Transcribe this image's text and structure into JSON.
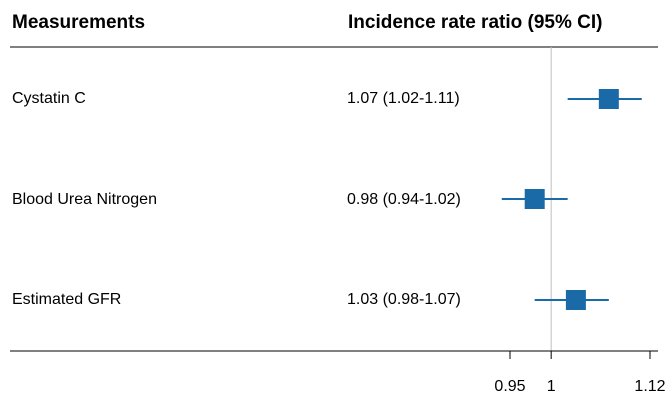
{
  "header": {
    "left": "Measurements",
    "right": "Incidence rate ratio (95% CI)"
  },
  "chart_data": {
    "type": "forest",
    "xlim": [
      0.93,
      1.12
    ],
    "reference_line": 1,
    "ticks": [
      {
        "value": 0.95,
        "label": "0.95"
      },
      {
        "value": 1,
        "label": "1"
      },
      {
        "value": 1.12,
        "label": "1.12"
      }
    ],
    "rows": [
      {
        "label": "Cystatin C",
        "ci_text": "1.07 (1.02-1.11)",
        "estimate": 1.07,
        "lower": 1.02,
        "upper": 1.11
      },
      {
        "label": "Blood Urea Nitrogen",
        "ci_text": "0.98 (0.94-1.02)",
        "estimate": 0.98,
        "lower": 0.94,
        "upper": 1.02
      },
      {
        "label": "Estimated GFR",
        "ci_text": "1.03 (0.98-1.07)",
        "estimate": 1.03,
        "lower": 0.98,
        "upper": 1.07
      }
    ],
    "colors": {
      "marker": "#1a6aa8",
      "reference": "#bfbfbf",
      "axis": "#000000"
    }
  }
}
